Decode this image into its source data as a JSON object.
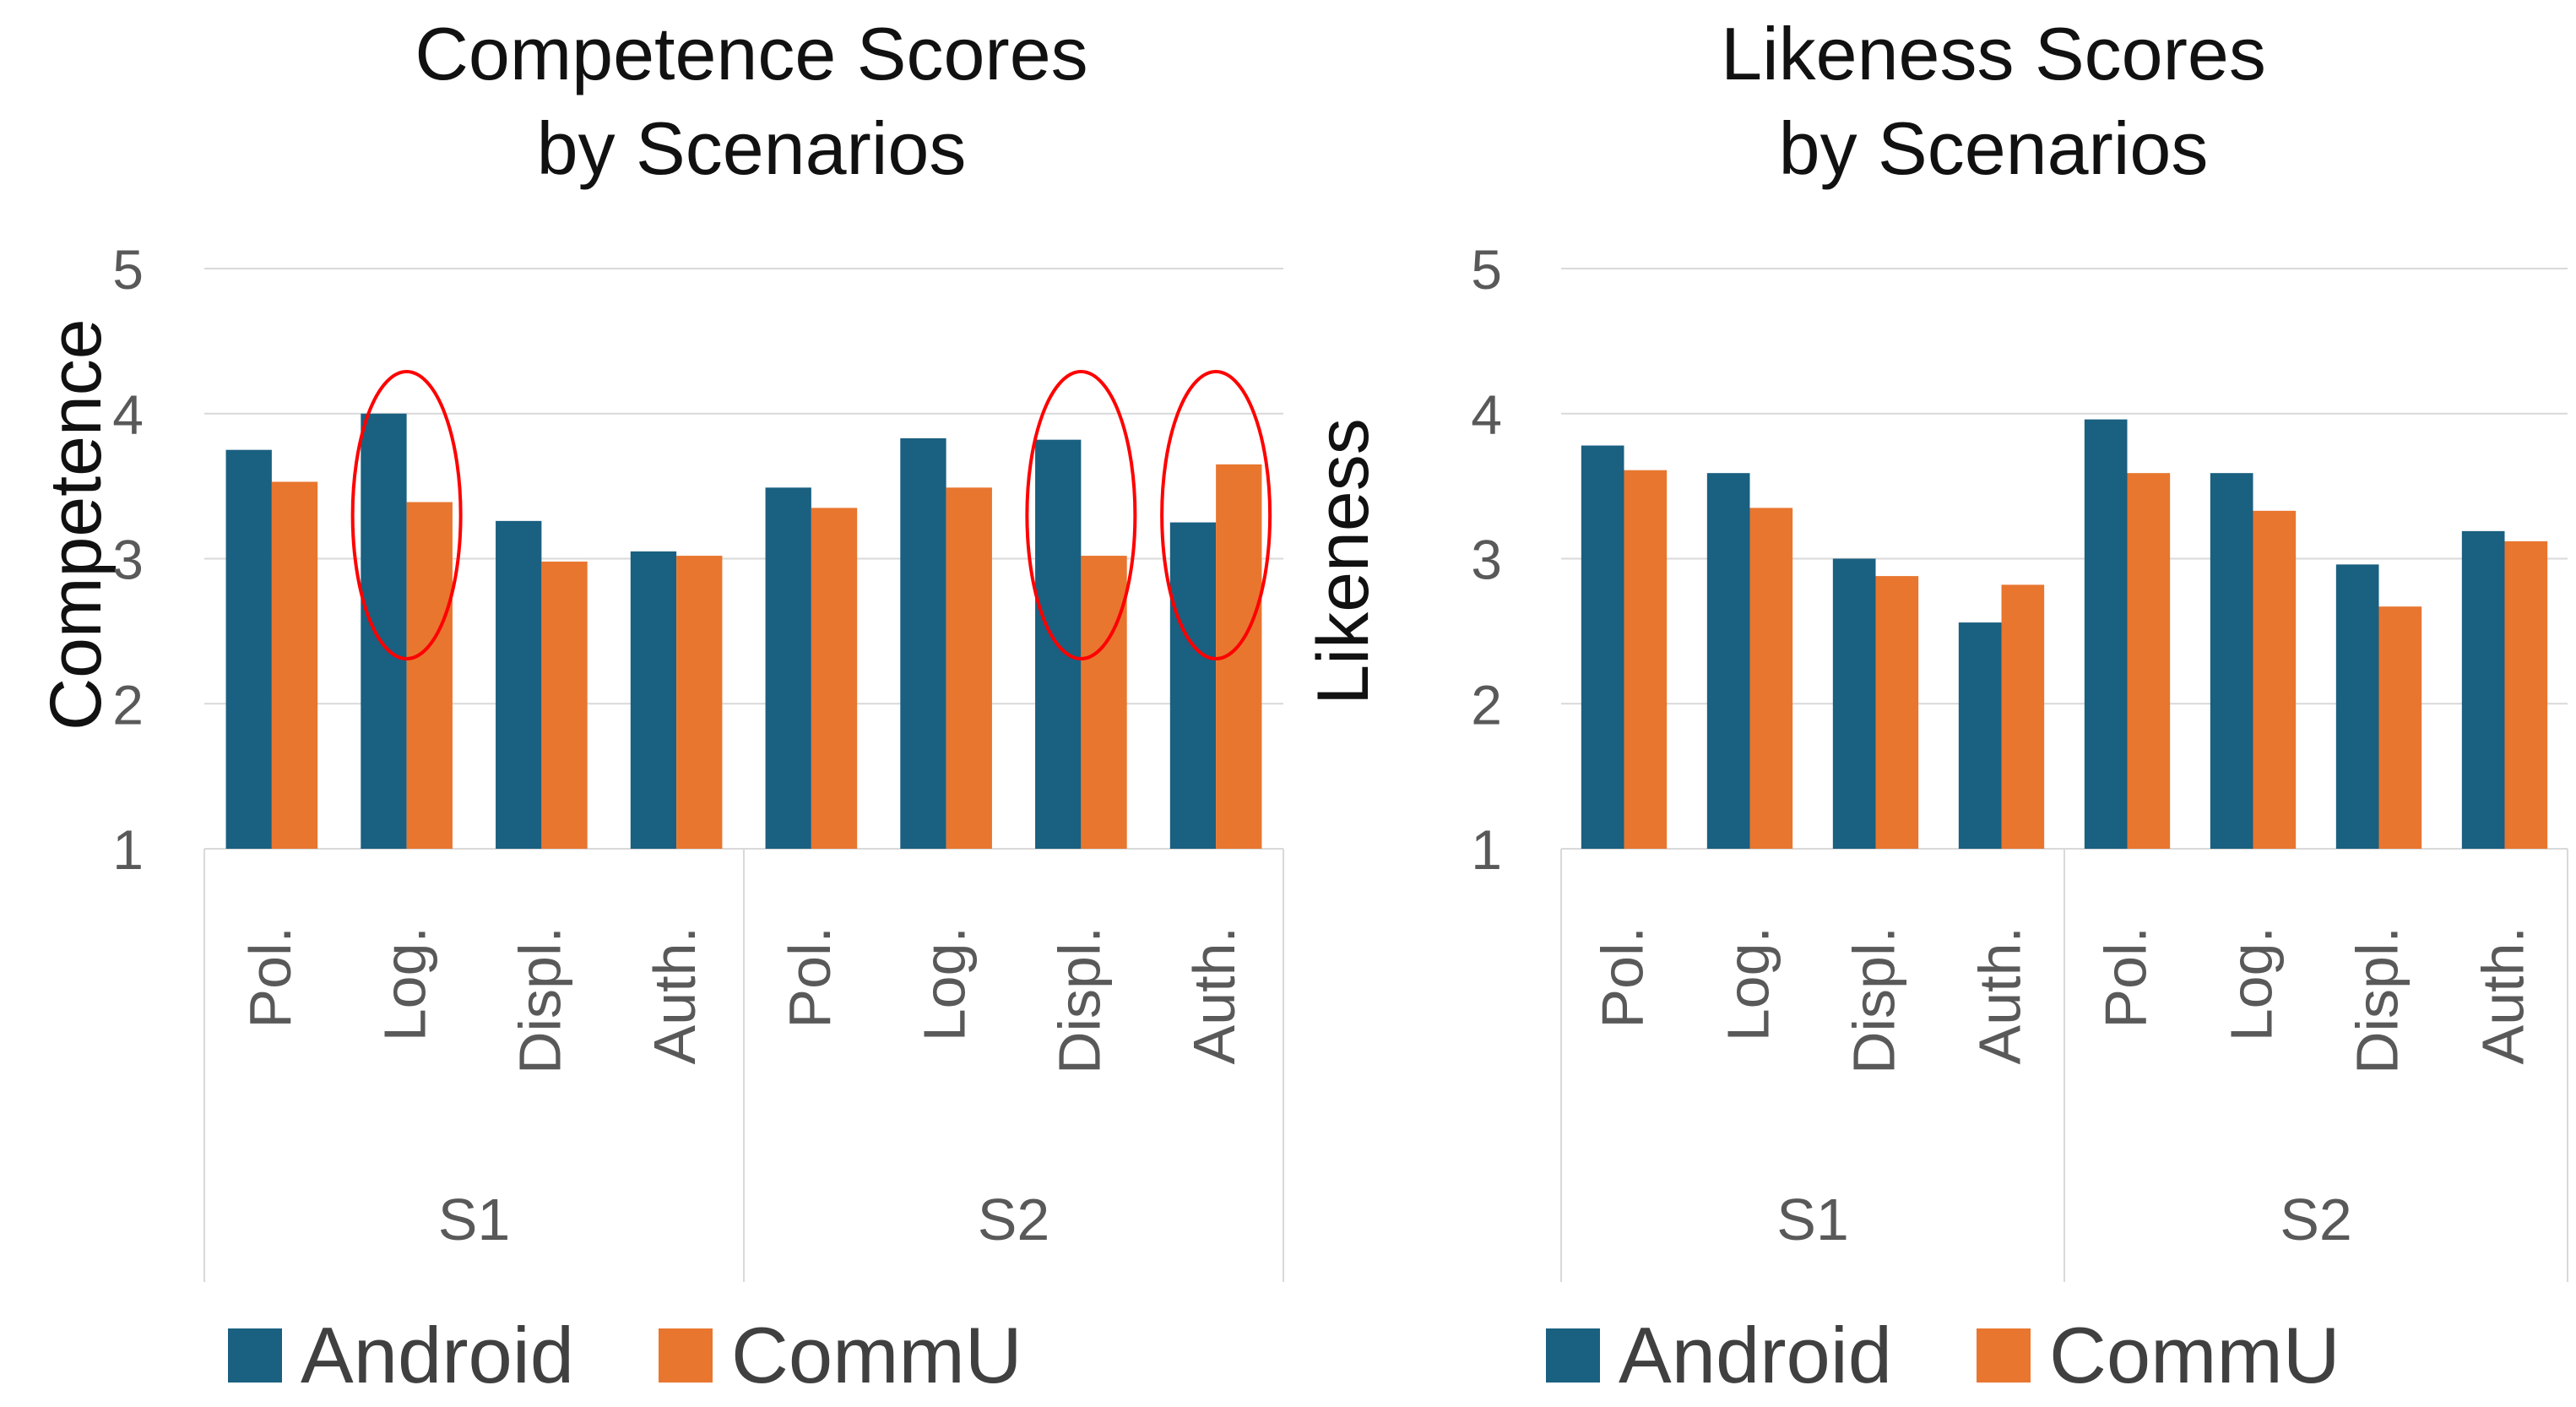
{
  "colors": {
    "android": "#1a6080",
    "commu": "#e8762f",
    "highlight": "#ff0000",
    "grid": "#d9d9d9",
    "axis_text": "#595959"
  },
  "legend": [
    {
      "key": "android",
      "label": "Android"
    },
    {
      "key": "commu",
      "label": "CommU"
    }
  ],
  "chart_data": [
    {
      "type": "bar",
      "title": "Competence Scores by Scenarios",
      "title_lines": [
        "Competence Scores",
        "by Scenarios"
      ],
      "ylabel": "Competence",
      "xlabel": "",
      "ylim": [
        1,
        5
      ],
      "yticks": [
        "1",
        "2",
        "3",
        "4",
        "5"
      ],
      "groups": [
        "S1",
        "S2"
      ],
      "categories": [
        "Pol.",
        "Log.",
        "Displ.",
        "Auth.",
        "Pol.",
        "Log.",
        "Displ.",
        "Auth."
      ],
      "series": [
        {
          "name": "Android",
          "key": "android",
          "values": [
            3.75,
            4.0,
            3.26,
            3.05,
            3.49,
            3.83,
            3.82,
            3.25
          ]
        },
        {
          "name": "CommU",
          "key": "commu",
          "values": [
            3.53,
            3.39,
            2.98,
            3.02,
            3.35,
            3.49,
            3.02,
            3.65
          ]
        }
      ],
      "highlighted_categories": [
        1,
        6,
        7
      ]
    },
    {
      "type": "bar",
      "title": "Likeness Scores by Scenarios",
      "title_lines": [
        "Likeness Scores",
        "by Scenarios"
      ],
      "ylabel": "Likeness",
      "xlabel": "",
      "ylim": [
        1,
        5
      ],
      "yticks": [
        "1",
        "2",
        "3",
        "4",
        "5"
      ],
      "groups": [
        "S1",
        "S2"
      ],
      "categories": [
        "Pol.",
        "Log.",
        "Displ.",
        "Auth.",
        "Pol.",
        "Log.",
        "Displ.",
        "Auth."
      ],
      "series": [
        {
          "name": "Android",
          "key": "android",
          "values": [
            3.78,
            3.59,
            3.0,
            2.56,
            3.96,
            3.59,
            2.96,
            3.19
          ]
        },
        {
          "name": "CommU",
          "key": "commu",
          "values": [
            3.61,
            3.35,
            2.88,
            2.82,
            3.59,
            3.33,
            2.67,
            3.12
          ]
        }
      ],
      "highlighted_categories": []
    }
  ]
}
